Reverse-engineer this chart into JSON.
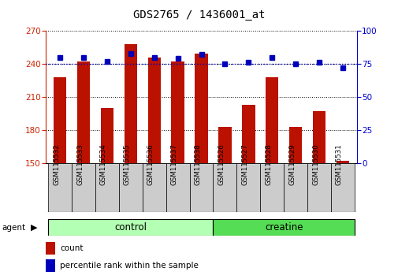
{
  "title": "GDS2765 / 1436001_at",
  "samples": [
    "GSM115532",
    "GSM115533",
    "GSM115534",
    "GSM115535",
    "GSM115536",
    "GSM115537",
    "GSM115538",
    "GSM115526",
    "GSM115527",
    "GSM115528",
    "GSM115529",
    "GSM115530",
    "GSM115531"
  ],
  "counts": [
    228,
    242,
    200,
    258,
    246,
    242,
    249,
    183,
    203,
    228,
    183,
    197,
    152
  ],
  "percentiles": [
    80,
    80,
    77,
    83,
    80,
    79,
    82,
    75,
    76,
    80,
    75,
    76,
    72
  ],
  "control_indices": [
    0,
    1,
    2,
    3,
    4,
    5,
    6
  ],
  "creatine_indices": [
    7,
    8,
    9,
    10,
    11,
    12
  ],
  "control_label": "control",
  "creatine_label": "creatine",
  "control_color": "#b3ffb3",
  "creatine_color": "#55dd55",
  "ylim_left": [
    150,
    270
  ],
  "ylim_right": [
    0,
    100
  ],
  "yticks_left": [
    150,
    180,
    210,
    240,
    270
  ],
  "yticks_right": [
    0,
    25,
    50,
    75,
    100
  ],
  "bar_color": "#bb1100",
  "dot_color": "#0000bb",
  "left_axis_color": "#cc2200",
  "right_axis_color": "#0000cc",
  "bar_width": 0.55,
  "sample_box_color": "#cccccc",
  "dotted_line_pct": 75,
  "legend_count_label": "count",
  "legend_pct_label": "percentile rank within the sample",
  "agent_label": "agent"
}
